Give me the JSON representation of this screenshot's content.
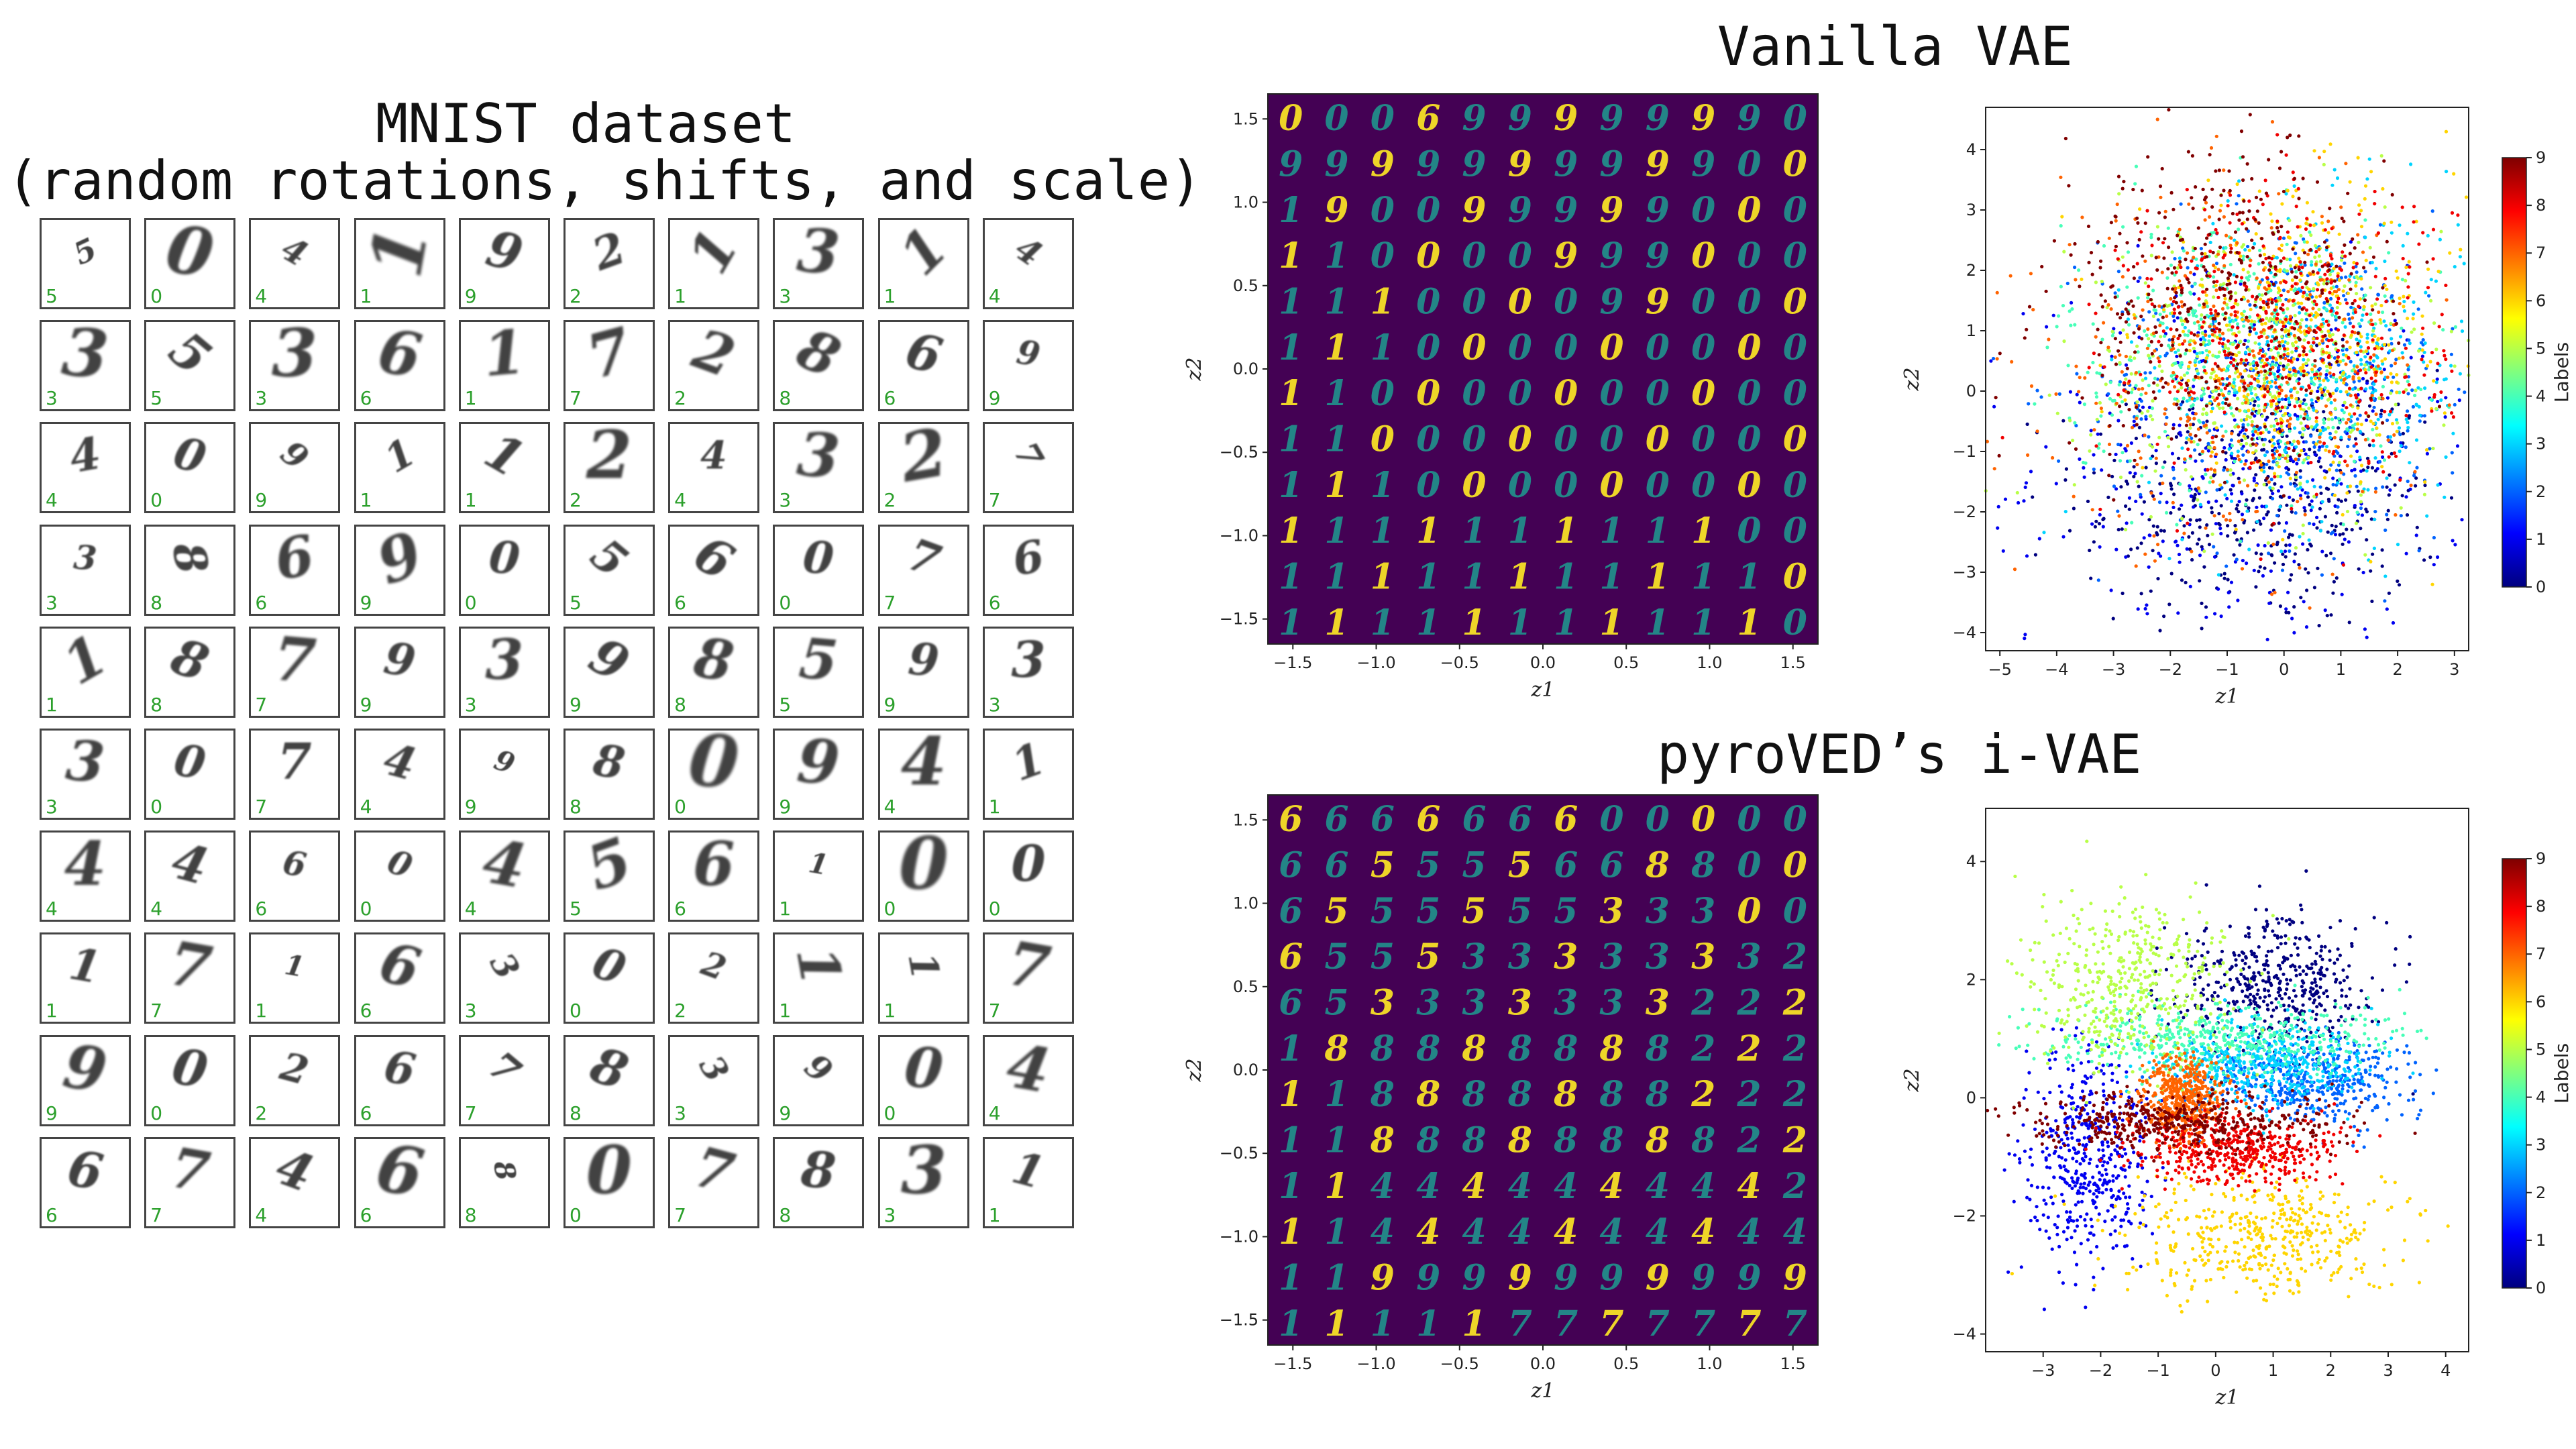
{
  "titles": {
    "mnist_line1": "MNIST dataset",
    "mnist_line2": "(random rotations, shifts, and scale)",
    "vanilla": "Vanilla VAE",
    "pyroved": "pyroVED’s i-VAE"
  },
  "mnist": {
    "cells": [
      {
        "digit": "5",
        "label": "5"
      },
      {
        "digit": "0",
        "label": "0"
      },
      {
        "digit": "4",
        "label": "4"
      },
      {
        "digit": "1",
        "label": "1"
      },
      {
        "digit": "9",
        "label": "9"
      },
      {
        "digit": "2",
        "label": "2"
      },
      {
        "digit": "1",
        "label": "1"
      },
      {
        "digit": "3",
        "label": "3"
      },
      {
        "digit": "1",
        "label": "1"
      },
      {
        "digit": "4",
        "label": "4"
      },
      {
        "digit": "3",
        "label": "3"
      },
      {
        "digit": "5",
        "label": "5"
      },
      {
        "digit": "3",
        "label": "3"
      },
      {
        "digit": "6",
        "label": "6"
      },
      {
        "digit": "1",
        "label": "1"
      },
      {
        "digit": "7",
        "label": "7"
      },
      {
        "digit": "2",
        "label": "2"
      },
      {
        "digit": "8",
        "label": "8"
      },
      {
        "digit": "6",
        "label": "6"
      },
      {
        "digit": "9",
        "label": "9"
      },
      {
        "digit": "4",
        "label": "4"
      },
      {
        "digit": "0",
        "label": "0"
      },
      {
        "digit": "9",
        "label": "9"
      },
      {
        "digit": "1",
        "label": "1"
      },
      {
        "digit": "1",
        "label": "1"
      },
      {
        "digit": "2",
        "label": "2"
      },
      {
        "digit": "4",
        "label": "4"
      },
      {
        "digit": "3",
        "label": "3"
      },
      {
        "digit": "2",
        "label": "2"
      },
      {
        "digit": "7",
        "label": "7"
      },
      {
        "digit": "3",
        "label": "3"
      },
      {
        "digit": "8",
        "label": "8"
      },
      {
        "digit": "6",
        "label": "6"
      },
      {
        "digit": "9",
        "label": "9"
      },
      {
        "digit": "0",
        "label": "0"
      },
      {
        "digit": "5",
        "label": "5"
      },
      {
        "digit": "6",
        "label": "6"
      },
      {
        "digit": "0",
        "label": "0"
      },
      {
        "digit": "7",
        "label": "7"
      },
      {
        "digit": "6",
        "label": "6"
      },
      {
        "digit": "1",
        "label": "1"
      },
      {
        "digit": "8",
        "label": "8"
      },
      {
        "digit": "7",
        "label": "7"
      },
      {
        "digit": "9",
        "label": "9"
      },
      {
        "digit": "3",
        "label": "3"
      },
      {
        "digit": "9",
        "label": "9"
      },
      {
        "digit": "8",
        "label": "8"
      },
      {
        "digit": "5",
        "label": "5"
      },
      {
        "digit": "9",
        "label": "9"
      },
      {
        "digit": "3",
        "label": "3"
      },
      {
        "digit": "3",
        "label": "3"
      },
      {
        "digit": "0",
        "label": "0"
      },
      {
        "digit": "7",
        "label": "7"
      },
      {
        "digit": "4",
        "label": "4"
      },
      {
        "digit": "9",
        "label": "9"
      },
      {
        "digit": "8",
        "label": "8"
      },
      {
        "digit": "0",
        "label": "0"
      },
      {
        "digit": "9",
        "label": "9"
      },
      {
        "digit": "4",
        "label": "4"
      },
      {
        "digit": "1",
        "label": "1"
      },
      {
        "digit": "4",
        "label": "4"
      },
      {
        "digit": "4",
        "label": "4"
      },
      {
        "digit": "6",
        "label": "6"
      },
      {
        "digit": "0",
        "label": "0"
      },
      {
        "digit": "4",
        "label": "4"
      },
      {
        "digit": "5",
        "label": "5"
      },
      {
        "digit": "6",
        "label": "6"
      },
      {
        "digit": "1",
        "label": "1"
      },
      {
        "digit": "0",
        "label": "0"
      },
      {
        "digit": "0",
        "label": "0"
      },
      {
        "digit": "1",
        "label": "1"
      },
      {
        "digit": "7",
        "label": "7"
      },
      {
        "digit": "1",
        "label": "1"
      },
      {
        "digit": "6",
        "label": "6"
      },
      {
        "digit": "3",
        "label": "3"
      },
      {
        "digit": "0",
        "label": "0"
      },
      {
        "digit": "2",
        "label": "2"
      },
      {
        "digit": "1",
        "label": "1"
      },
      {
        "digit": "1",
        "label": "1"
      },
      {
        "digit": "7",
        "label": "7"
      },
      {
        "digit": "9",
        "label": "9"
      },
      {
        "digit": "0",
        "label": "0"
      },
      {
        "digit": "2",
        "label": "2"
      },
      {
        "digit": "6",
        "label": "6"
      },
      {
        "digit": "7",
        "label": "7"
      },
      {
        "digit": "8",
        "label": "8"
      },
      {
        "digit": "3",
        "label": "3"
      },
      {
        "digit": "9",
        "label": "9"
      },
      {
        "digit": "0",
        "label": "0"
      },
      {
        "digit": "4",
        "label": "4"
      },
      {
        "digit": "6",
        "label": "6"
      },
      {
        "digit": "7",
        "label": "7"
      },
      {
        "digit": "4",
        "label": "4"
      },
      {
        "digit": "6",
        "label": "6"
      },
      {
        "digit": "8",
        "label": "8"
      },
      {
        "digit": "0",
        "label": "0"
      },
      {
        "digit": "7",
        "label": "7"
      },
      {
        "digit": "8",
        "label": "8"
      },
      {
        "digit": "3",
        "label": "3"
      },
      {
        "digit": "1",
        "label": "1"
      }
    ]
  },
  "colors": {
    "manifold_bg": "#440154",
    "manifold_digit_low": "#21918c",
    "manifold_digit_high": "#fde725",
    "mnist_label": "#2ca02c",
    "jet": [
      "#00007f",
      "#0000ff",
      "#007fff",
      "#00ffff",
      "#7fff7f",
      "#ffff00",
      "#ff7f00",
      "#ff0000",
      "#7f0000"
    ]
  },
  "chart_data": [
    {
      "type": "heatmap",
      "name": "vanilla-manifold",
      "title": "Vanilla VAE",
      "xlabel": "z1",
      "ylabel": "z2",
      "xlim": [
        -1.65,
        1.65
      ],
      "ylim": [
        -1.65,
        1.65
      ],
      "xticks": [
        "−1.5",
        "−1.0",
        "−0.5",
        "0.0",
        "0.5",
        "1.0",
        "1.5"
      ],
      "xtick_values": [
        -1.5,
        -1.0,
        -0.5,
        0.0,
        0.5,
        1.0,
        1.5
      ],
      "yticks": [
        "1.5",
        "1.0",
        "0.5",
        "0.0",
        "−0.5",
        "−1.0",
        "−1.5"
      ],
      "ytick_values": [
        1.5,
        1.0,
        0.5,
        0.0,
        -0.5,
        -1.0,
        -1.5
      ],
      "grid_size": 12,
      "decoded_digits": [
        [
          "0",
          "0",
          "0",
          "6",
          "9",
          "9",
          "9",
          "9",
          "9",
          "9",
          "9",
          "0"
        ],
        [
          "9",
          "9",
          "9",
          "9",
          "9",
          "9",
          "9",
          "9",
          "9",
          "9",
          "0",
          "0"
        ],
        [
          "1",
          "9",
          "0",
          "0",
          "9",
          "9",
          "9",
          "9",
          "9",
          "0",
          "0",
          "0"
        ],
        [
          "1",
          "1",
          "0",
          "0",
          "0",
          "0",
          "9",
          "9",
          "9",
          "0",
          "0",
          "0"
        ],
        [
          "1",
          "1",
          "1",
          "0",
          "0",
          "0",
          "0",
          "9",
          "9",
          "0",
          "0",
          "0"
        ],
        [
          "1",
          "1",
          "1",
          "0",
          "0",
          "0",
          "0",
          "0",
          "0",
          "0",
          "0",
          "0"
        ],
        [
          "1",
          "1",
          "0",
          "0",
          "0",
          "0",
          "0",
          "0",
          "0",
          "0",
          "0",
          "0"
        ],
        [
          "1",
          "1",
          "0",
          "0",
          "0",
          "0",
          "0",
          "0",
          "0",
          "0",
          "0",
          "0"
        ],
        [
          "1",
          "1",
          "1",
          "0",
          "0",
          "0",
          "0",
          "0",
          "0",
          "0",
          "0",
          "0"
        ],
        [
          "1",
          "1",
          "1",
          "1",
          "1",
          "1",
          "1",
          "1",
          "1",
          "1",
          "0",
          "0"
        ],
        [
          "1",
          "1",
          "1",
          "1",
          "1",
          "1",
          "1",
          "1",
          "1",
          "1",
          "1",
          "0"
        ],
        [
          "1",
          "1",
          "1",
          "1",
          "1",
          "1",
          "1",
          "1",
          "1",
          "1",
          "1",
          "0"
        ]
      ]
    },
    {
      "type": "scatter",
      "name": "vanilla-latent",
      "xlabel": "z1",
      "ylabel": "z2",
      "xlim": [
        -5.25,
        3.25
      ],
      "ylim": [
        -4.3,
        4.7
      ],
      "xticks": [
        "−5",
        "−4",
        "−3",
        "−2",
        "−1",
        "0",
        "1",
        "2",
        "3"
      ],
      "xtick_values": [
        -5,
        -4,
        -3,
        -2,
        -1,
        0,
        1,
        2,
        3
      ],
      "yticks": [
        "4",
        "3",
        "2",
        "1",
        "0",
        "−1",
        "−2",
        "−3",
        "−4"
      ],
      "ytick_values": [
        4,
        3,
        2,
        1,
        0,
        -1,
        -2,
        -3,
        -4
      ],
      "colorbar": {
        "label": "Labels",
        "ticks": [
          "9",
          "8",
          "7",
          "6",
          "5",
          "4",
          "3",
          "2",
          "1",
          "0"
        ],
        "range": [
          0,
          9
        ]
      },
      "clusters": [
        {
          "label": 0,
          "cx": -0.4,
          "cy": -1.8,
          "sx": 1.6,
          "sy": 1.1
        },
        {
          "label": 1,
          "cx": -0.6,
          "cy": -1.2,
          "sx": 1.9,
          "sy": 1.5
        },
        {
          "label": 2,
          "cx": 0.2,
          "cy": 0.2,
          "sx": 1.7,
          "sy": 1.4
        },
        {
          "label": 3,
          "cx": 0.6,
          "cy": 0.4,
          "sx": 1.5,
          "sy": 1.3
        },
        {
          "label": 4,
          "cx": -0.9,
          "cy": 0.7,
          "sx": 1.5,
          "sy": 1.1
        },
        {
          "label": 5,
          "cx": -0.4,
          "cy": 0.4,
          "sx": 1.6,
          "sy": 1.2
        },
        {
          "label": 6,
          "cx": 0.3,
          "cy": 0.9,
          "sx": 1.4,
          "sy": 1.2
        },
        {
          "label": 7,
          "cx": -0.8,
          "cy": 0.3,
          "sx": 1.6,
          "sy": 1.4
        },
        {
          "label": 8,
          "cx": 0.1,
          "cy": 1.0,
          "sx": 1.4,
          "sy": 1.2
        },
        {
          "label": 9,
          "cx": -1.1,
          "cy": 1.5,
          "sx": 1.5,
          "sy": 1.3
        }
      ]
    },
    {
      "type": "heatmap",
      "name": "ivae-manifold",
      "title": "pyroVED’s i-VAE",
      "xlabel": "z1",
      "ylabel": "z2",
      "xlim": [
        -1.65,
        1.65
      ],
      "ylim": [
        -1.65,
        1.65
      ],
      "xticks": [
        "−1.5",
        "−1.0",
        "−0.5",
        "0.0",
        "0.5",
        "1.0",
        "1.5"
      ],
      "xtick_values": [
        -1.5,
        -1.0,
        -0.5,
        0.0,
        0.5,
        1.0,
        1.5
      ],
      "yticks": [
        "1.5",
        "1.0",
        "0.5",
        "0.0",
        "−0.5",
        "−1.0",
        "−1.5"
      ],
      "ytick_values": [
        1.5,
        1.0,
        0.5,
        0.0,
        -0.5,
        -1.0,
        -1.5
      ],
      "grid_size": 12,
      "decoded_digits": [
        [
          "6",
          "6",
          "6",
          "6",
          "6",
          "6",
          "6",
          "0",
          "0",
          "0",
          "0",
          "0"
        ],
        [
          "6",
          "6",
          "5",
          "5",
          "5",
          "5",
          "6",
          "6",
          "8",
          "8",
          "0",
          "0"
        ],
        [
          "6",
          "5",
          "5",
          "5",
          "5",
          "5",
          "5",
          "3",
          "3",
          "3",
          "0",
          "0"
        ],
        [
          "6",
          "5",
          "5",
          "5",
          "3",
          "3",
          "3",
          "3",
          "3",
          "3",
          "3",
          "2"
        ],
        [
          "6",
          "5",
          "3",
          "3",
          "3",
          "3",
          "3",
          "3",
          "3",
          "2",
          "2",
          "2"
        ],
        [
          "1",
          "8",
          "8",
          "8",
          "8",
          "8",
          "8",
          "8",
          "8",
          "2",
          "2",
          "2"
        ],
        [
          "1",
          "1",
          "8",
          "8",
          "8",
          "8",
          "8",
          "8",
          "8",
          "2",
          "2",
          "2"
        ],
        [
          "1",
          "1",
          "8",
          "8",
          "8",
          "8",
          "8",
          "8",
          "8",
          "8",
          "2",
          "2"
        ],
        [
          "1",
          "1",
          "4",
          "4",
          "4",
          "4",
          "4",
          "4",
          "4",
          "4",
          "4",
          "2"
        ],
        [
          "1",
          "1",
          "4",
          "4",
          "4",
          "4",
          "4",
          "4",
          "4",
          "4",
          "4",
          "4"
        ],
        [
          "1",
          "1",
          "9",
          "9",
          "9",
          "9",
          "9",
          "9",
          "9",
          "9",
          "9",
          "9"
        ],
        [
          "1",
          "1",
          "1",
          "1",
          "1",
          "7",
          "7",
          "7",
          "7",
          "7",
          "7",
          "7"
        ]
      ]
    },
    {
      "type": "scatter",
      "name": "ivae-latent",
      "xlabel": "z1",
      "ylabel": "z2",
      "xlim": [
        -4.0,
        4.4
      ],
      "ylim": [
        -4.3,
        4.9
      ],
      "xticks": [
        "−3",
        "−2",
        "−1",
        "0",
        "1",
        "2",
        "3",
        "4"
      ],
      "xtick_values": [
        -3,
        -2,
        -1,
        0,
        1,
        2,
        3,
        4
      ],
      "yticks": [
        "4",
        "2",
        "0",
        "−2",
        "−4"
      ],
      "ytick_values": [
        4,
        2,
        0,
        -2,
        -4
      ],
      "colorbar": {
        "label": "Labels",
        "ticks": [
          "9",
          "8",
          "7",
          "6",
          "5",
          "4",
          "3",
          "2",
          "1",
          "0"
        ],
        "range": [
          0,
          9
        ]
      },
      "clusters": [
        {
          "label": 0,
          "cx": 1.0,
          "cy": 1.9,
          "sx": 0.9,
          "sy": 0.55
        },
        {
          "label": 1,
          "cx": -2.2,
          "cy": -1.0,
          "sx": 0.55,
          "sy": 0.9
        },
        {
          "label": 2,
          "cx": 1.5,
          "cy": 0.3,
          "sx": 0.9,
          "sy": 0.35
        },
        {
          "label": 3,
          "cx": 0.8,
          "cy": 0.6,
          "sx": 0.9,
          "sy": 0.35
        },
        {
          "label": 4,
          "cx": 0.0,
          "cy": 1.0,
          "sx": 1.5,
          "sy": 0.3
        },
        {
          "label": 5,
          "cx": -1.5,
          "cy": 1.9,
          "sx": 0.9,
          "sy": 0.75
        },
        {
          "label": 6,
          "cx": 0.8,
          "cy": -2.3,
          "sx": 1.2,
          "sy": 0.55
        },
        {
          "label": 7,
          "cx": -0.6,
          "cy": 0.0,
          "sx": 0.35,
          "sy": 0.35
        },
        {
          "label": 8,
          "cx": 0.3,
          "cy": -0.9,
          "sx": 0.9,
          "sy": 0.3
        },
        {
          "label": 9,
          "cx": -0.6,
          "cy": -0.4,
          "sx": 1.4,
          "sy": 0.25
        }
      ]
    }
  ]
}
